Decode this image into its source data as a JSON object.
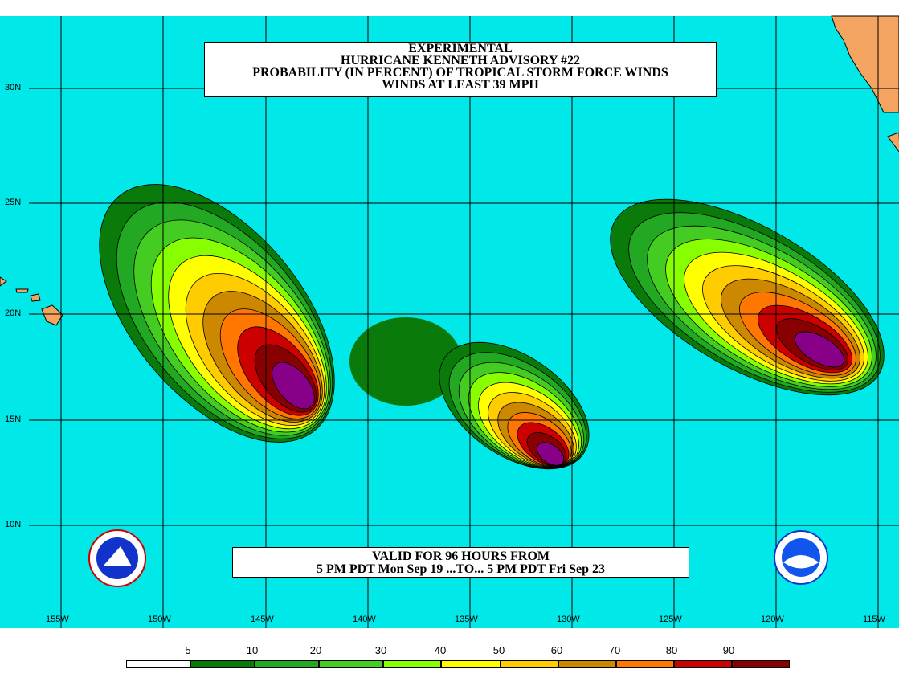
{
  "title": {
    "line1": "EXPERIMENTAL",
    "line2": "HURRICANE KENNETH ADVISORY #22",
    "line3": "PROBABILITY (IN PERCENT) OF TROPICAL STORM FORCE WINDS",
    "line4": "WINDS AT LEAST 39 MPH"
  },
  "valid": {
    "line1": "VALID FOR 96 HOURS FROM",
    "line2": "5 PM PDT Mon Sep 19 ...TO... 5 PM PDT Fri Sep 23"
  },
  "axes": {
    "lat_labels": [
      "30N",
      "25N",
      "20N",
      "15N",
      "10N"
    ],
    "lon_labels": [
      "155W",
      "150W",
      "145W",
      "140W",
      "135W",
      "130W",
      "125W",
      "120W",
      "115W"
    ]
  },
  "legend": {
    "labels": [
      "5",
      "10",
      "20",
      "30",
      "40",
      "50",
      "60",
      "70",
      "80",
      "90"
    ],
    "colors": [
      "#ffffff",
      "#0a7a0a",
      "#22a822",
      "#44cc22",
      "#88ff00",
      "#ffff00",
      "#ffcc00",
      "#cc8800",
      "#ff7700",
      "#cc0000",
      "#880000",
      "#880088"
    ]
  },
  "colors": {
    "ocean": "#00e8e8",
    "land": "#f4a460",
    "grid": "#000000"
  },
  "logos": [
    "nws-logo",
    "noaa-logo"
  ]
}
